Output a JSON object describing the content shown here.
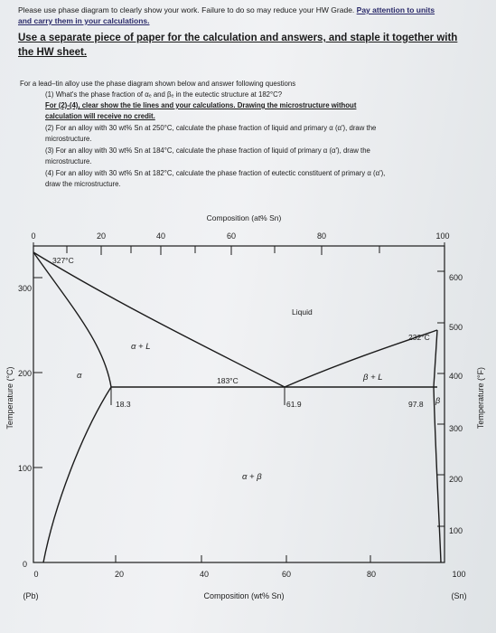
{
  "header": {
    "line1_plain": "Please use phase diagram to clearly show your work. Failure to do so may reduce your HW Grade.",
    "line1_emph": "Pay attention to units",
    "line2_emph": "and carry them in your calculations."
  },
  "instruction": {
    "line1": "Use a separate piece of paper for the calculation and answers, and staple it together with",
    "line2": "the HW sheet."
  },
  "questions": {
    "intro": "For a lead–tin alloy use the phase diagram shown below and answer following questions",
    "q1": "(1) What's the phase fraction of αₑ and βₑ in the eutectic structure at 182°C?",
    "note1": "For (2)-(4), clear show the tie lines and your calculations.  Drawing the microstructure without",
    "note2": "calculation will receive no credit.",
    "q2a": "(2) For an alloy with 30 wt% Sn at 250°C, calculate the phase fraction of liquid and primary α (α'), draw the",
    "q2b": "microstructure.",
    "q3a": "(3) For an alloy with 30 wt% Sn at 184°C, calculate the phase fraction of liquid of primary α (α'), draw the",
    "q3b": "microstructure.",
    "q4a": "(4) For an alloy with 30 wt% Sn at 182°C, calculate the phase fraction of eutectic constituent of primary α (α'),",
    "q4b": "draw the microstructure."
  },
  "diagram": {
    "top_axis_title": "Composition (at% Sn)",
    "top_ticks": [
      "0",
      "20",
      "40",
      "60",
      "80",
      "100"
    ],
    "bottom_axis_title": "Composition (wt% Sn)",
    "bottom_ticks": [
      "0",
      "20",
      "40",
      "60",
      "80",
      "100"
    ],
    "left_axis_title": "Temperature (°C)",
    "left_ticks": [
      "0",
      "100",
      "200",
      "300"
    ],
    "right_axis_title": "Temperature (°F)",
    "right_ticks": [
      "100",
      "200",
      "300",
      "400",
      "500",
      "600"
    ],
    "pb_label": "(Pb)",
    "sn_label": "(Sn)",
    "labels": {
      "t327": "327°C",
      "t232": "232°C",
      "t183": "183°C",
      "liquid": "Liquid",
      "alpha_liquid": "α + L",
      "beta_liquid": "β + L",
      "alpha": "α",
      "beta": "β",
      "alpha_beta": "α + β",
      "c183": "18.3",
      "c619": "61.9",
      "c978": "97.8"
    }
  }
}
